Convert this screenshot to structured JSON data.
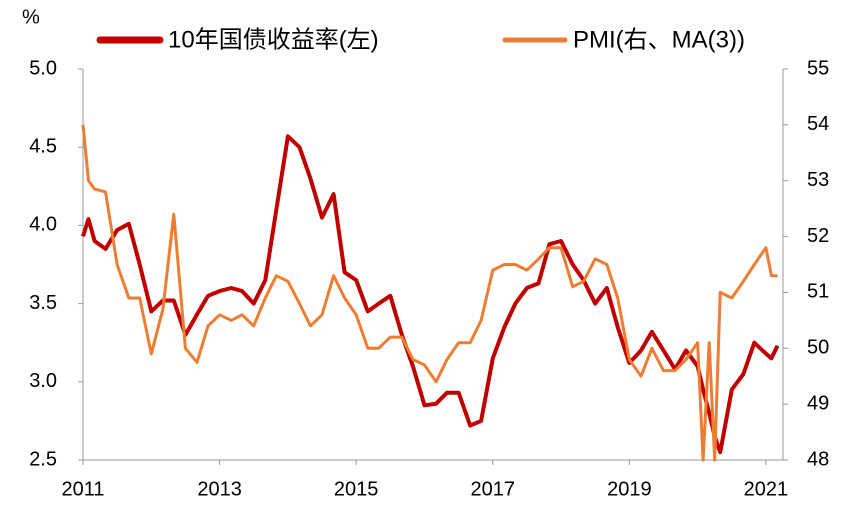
{
  "chart_data": {
    "type": "line",
    "y_label": "%",
    "x": [
      2011,
      2011.08,
      2011.17,
      2011.33,
      2011.5,
      2011.67,
      2011.83,
      2012,
      2012.17,
      2012.33,
      2012.5,
      2012.67,
      2012.83,
      2013,
      2013.17,
      2013.33,
      2013.5,
      2013.67,
      2013.83,
      2014,
      2014.17,
      2014.33,
      2014.5,
      2014.67,
      2014.83,
      2015,
      2015.17,
      2015.33,
      2015.5,
      2015.67,
      2015.83,
      2016,
      2016.17,
      2016.33,
      2016.5,
      2016.67,
      2016.83,
      2017,
      2017.17,
      2017.33,
      2017.5,
      2017.67,
      2017.83,
      2018,
      2018.17,
      2018.33,
      2018.5,
      2018.67,
      2018.83,
      2019,
      2019.17,
      2019.33,
      2019.5,
      2019.67,
      2019.83,
      2020,
      2020.08,
      2020.17,
      2020.25,
      2020.33,
      2020.5,
      2020.67,
      2020.83,
      2021,
      2021.08,
      2021.17
    ],
    "series": [
      {
        "name": "10年国债收益率(左)",
        "color": "#c00000",
        "axis": "y",
        "values": [
          3.93,
          4.04,
          3.9,
          3.85,
          3.97,
          4.01,
          3.75,
          3.45,
          3.52,
          3.52,
          3.3,
          3.43,
          3.55,
          3.58,
          3.6,
          3.58,
          3.5,
          3.65,
          4.1,
          4.57,
          4.5,
          4.3,
          4.05,
          4.2,
          3.7,
          3.65,
          3.45,
          3.5,
          3.55,
          3.3,
          3.1,
          2.85,
          2.86,
          2.93,
          2.93,
          2.72,
          2.75,
          3.15,
          3.35,
          3.5,
          3.6,
          3.63,
          3.88,
          3.9,
          3.75,
          3.65,
          3.5,
          3.6,
          3.35,
          3.12,
          3.2,
          3.32,
          3.2,
          3.08,
          3.2,
          3.1,
          2.95,
          2.8,
          2.65,
          2.55,
          2.95,
          3.05,
          3.25,
          3.18,
          3.15,
          3.23
        ]
      },
      {
        "name": "PMI(右、MA(3))",
        "color": "#ed7d31",
        "axis": "y2",
        "values": [
          54.0,
          53.0,
          52.85,
          52.8,
          51.5,
          50.9,
          50.9,
          49.9,
          50.7,
          52.4,
          50.0,
          49.75,
          50.4,
          50.6,
          50.5,
          50.6,
          50.4,
          50.9,
          51.3,
          51.2,
          50.8,
          50.4,
          50.6,
          51.3,
          50.9,
          50.6,
          50.0,
          50.0,
          50.2,
          50.2,
          49.8,
          49.7,
          49.4,
          49.8,
          50.1,
          50.1,
          50.5,
          51.4,
          51.5,
          51.5,
          51.4,
          51.6,
          51.8,
          51.8,
          51.1,
          51.2,
          51.6,
          51.5,
          50.9,
          49.8,
          49.5,
          50.0,
          49.6,
          49.6,
          49.8,
          50.1,
          48.0,
          50.1,
          48.0,
          51.0,
          50.9,
          51.2,
          51.5,
          51.8,
          51.3,
          51.3
        ]
      }
    ],
    "xlim": [
      2011,
      2021.25
    ],
    "xticks": [
      2011,
      2013,
      2015,
      2017,
      2019,
      2021
    ],
    "ylim": [
      2.5,
      5
    ],
    "yticks": [
      2.5,
      {
        "value": 3,
        "label": "3.0"
      },
      3.5,
      {
        "value": 4,
        "label": "4.0"
      },
      4.5,
      {
        "value": 5,
        "label": "5.0"
      }
    ],
    "y2lim": [
      48,
      55
    ],
    "y2ticks": [
      48,
      49,
      50,
      51,
      52,
      53,
      54,
      55
    ],
    "legend": "top"
  }
}
